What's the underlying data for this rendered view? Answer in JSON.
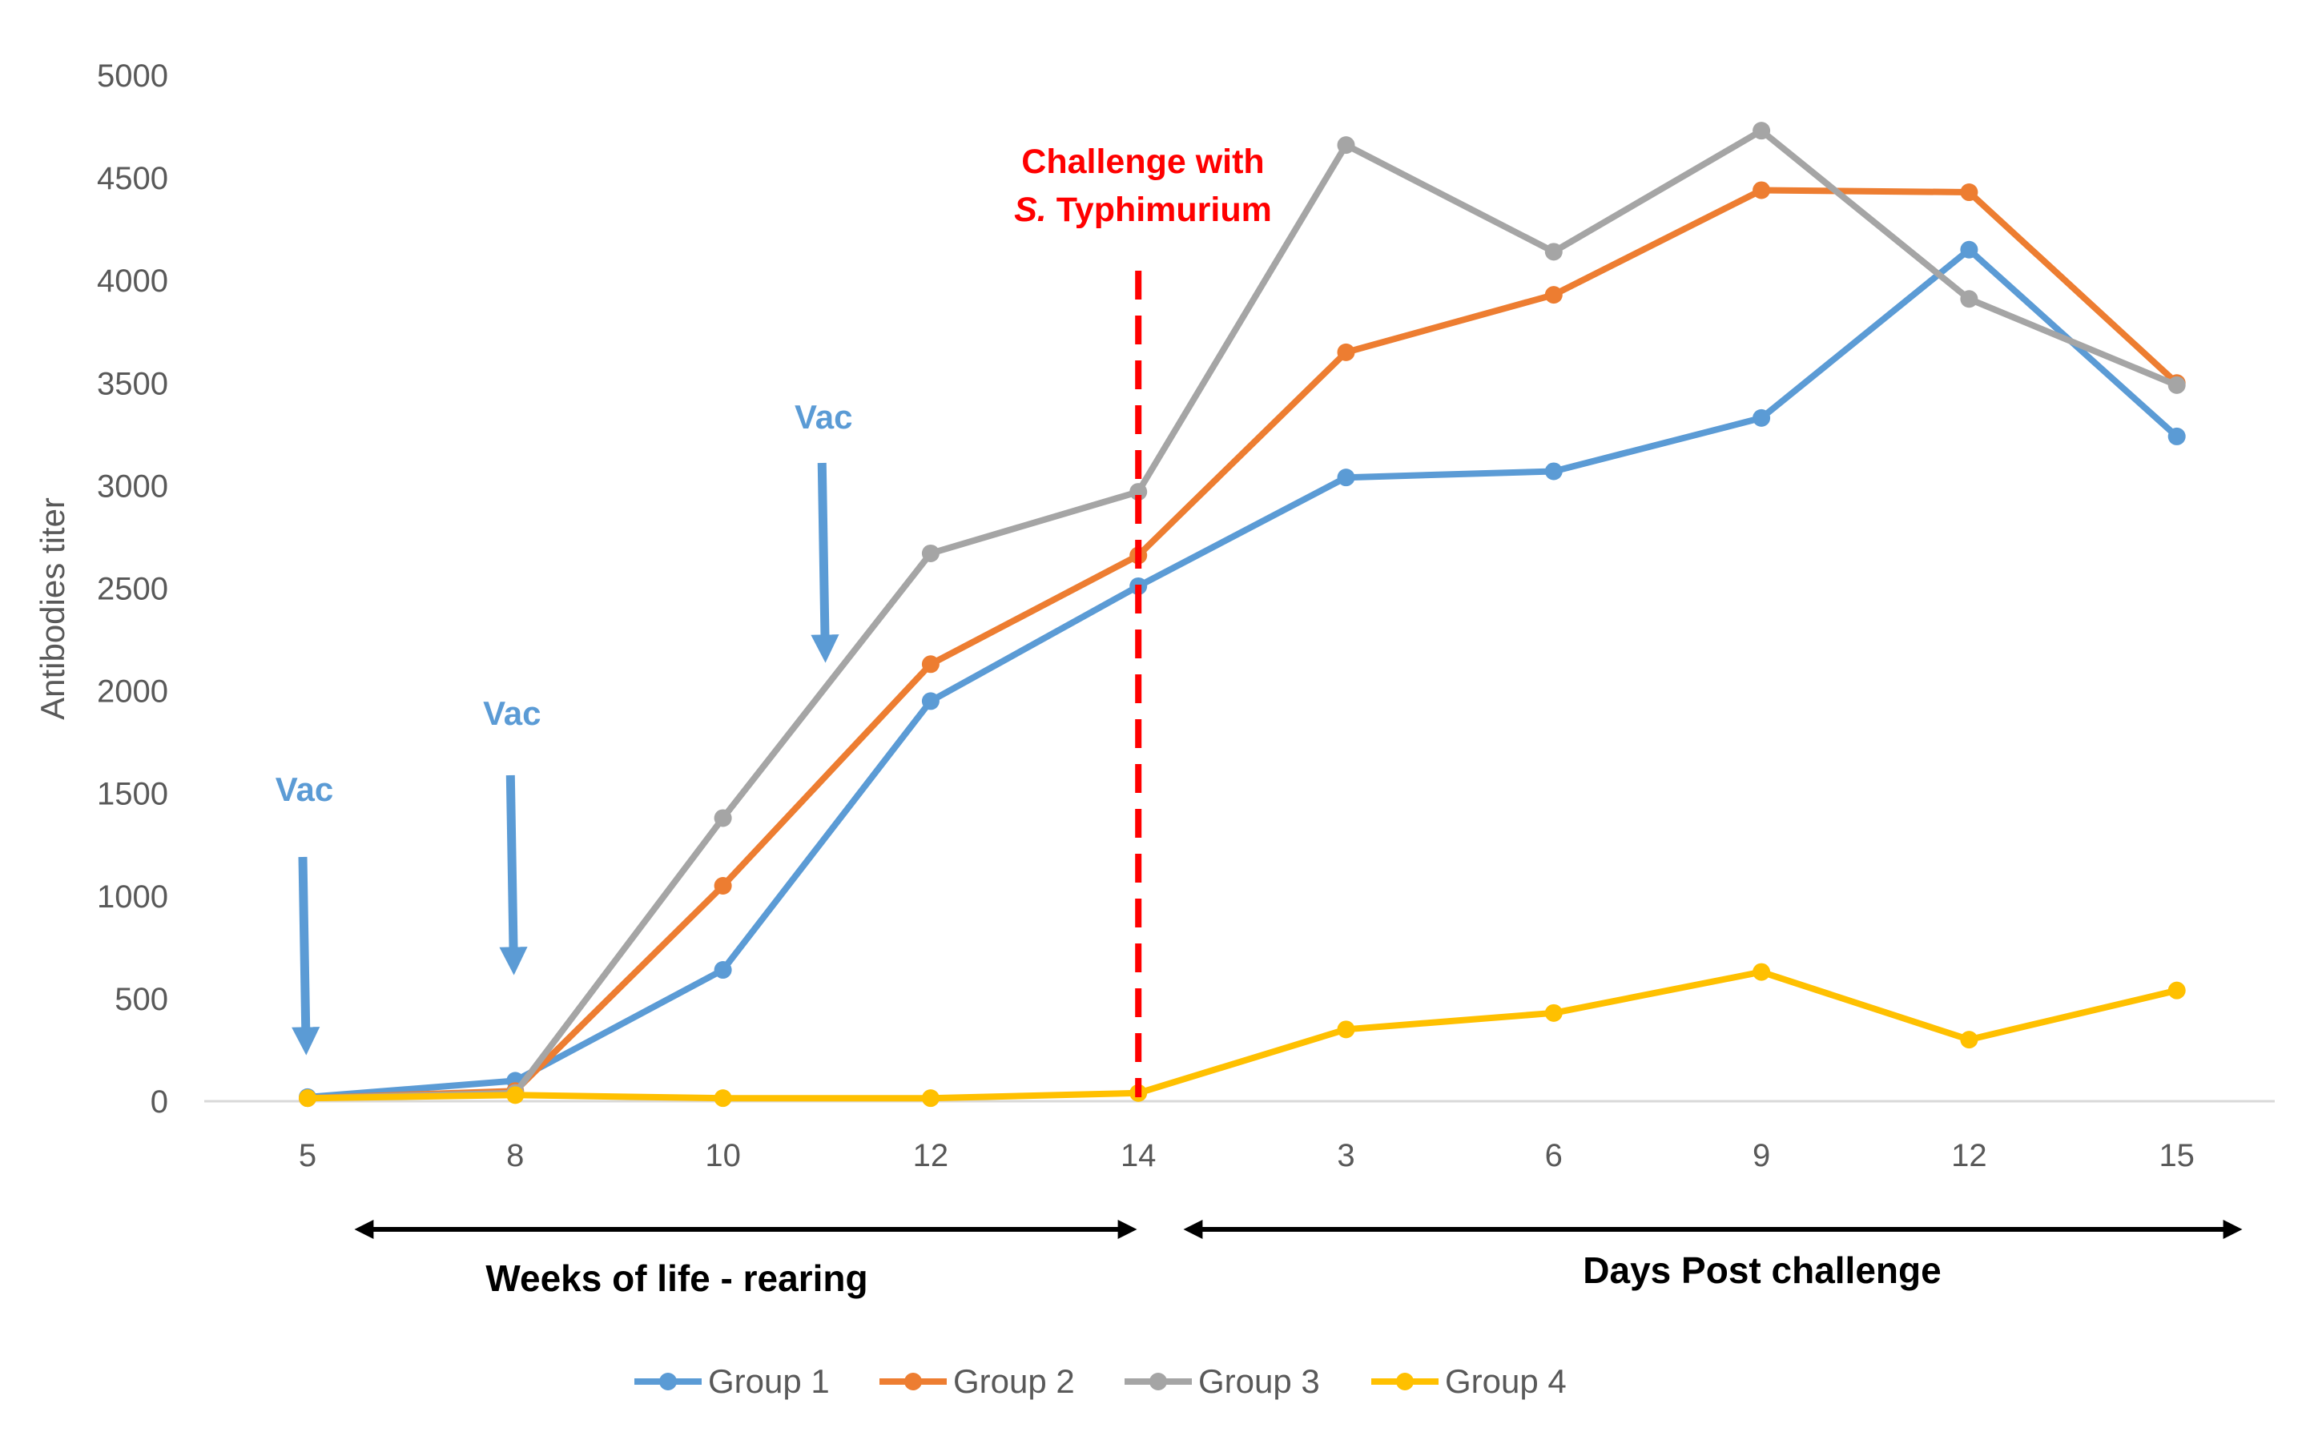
{
  "chart_data": {
    "type": "line",
    "title": "",
    "xlabel": "",
    "ylabel": "Antibodies titer",
    "ylim": [
      0,
      5000
    ],
    "yticks": [
      0,
      500,
      1000,
      1500,
      2000,
      2500,
      3000,
      3500,
      4000,
      4500,
      5000
    ],
    "categories": [
      "5",
      "8",
      "10",
      "12",
      "14",
      "3",
      "6",
      "9",
      "12",
      "15"
    ],
    "series": [
      {
        "name": "Group 1",
        "color": "#5b9bd5",
        "values": [
          20,
          100,
          640,
          1950,
          2510,
          3040,
          3070,
          3330,
          4150,
          3240
        ]
      },
      {
        "name": "Group 2",
        "color": "#ed7d31",
        "values": [
          15,
          50,
          1050,
          2130,
          2660,
          3650,
          3930,
          4440,
          4430,
          3500
        ]
      },
      {
        "name": "Group 3",
        "color": "#a5a5a5",
        "values": [
          15,
          40,
          1380,
          2670,
          2970,
          4660,
          4140,
          4730,
          3910,
          3490
        ]
      },
      {
        "name": "Group 4",
        "color": "#ffc000",
        "values": [
          15,
          30,
          15,
          15,
          40,
          350,
          430,
          630,
          300,
          540
        ]
      }
    ],
    "annotations": {
      "vaccinations": [
        {
          "label": "Vac",
          "category_index": 0
        },
        {
          "label": "Vac",
          "category_index": 1
        },
        {
          "label": "Vac",
          "category_position": 2.5
        }
      ],
      "challenge": {
        "line1": "Challenge with",
        "line2_italic": "S.",
        "line2_rest": " Typhimurium",
        "category_index": 4,
        "color": "#ff0000"
      },
      "periods": [
        {
          "label": "Weeks of life - rearing"
        },
        {
          "label": "Days Post challenge"
        }
      ]
    },
    "legend_position": "bottom"
  }
}
